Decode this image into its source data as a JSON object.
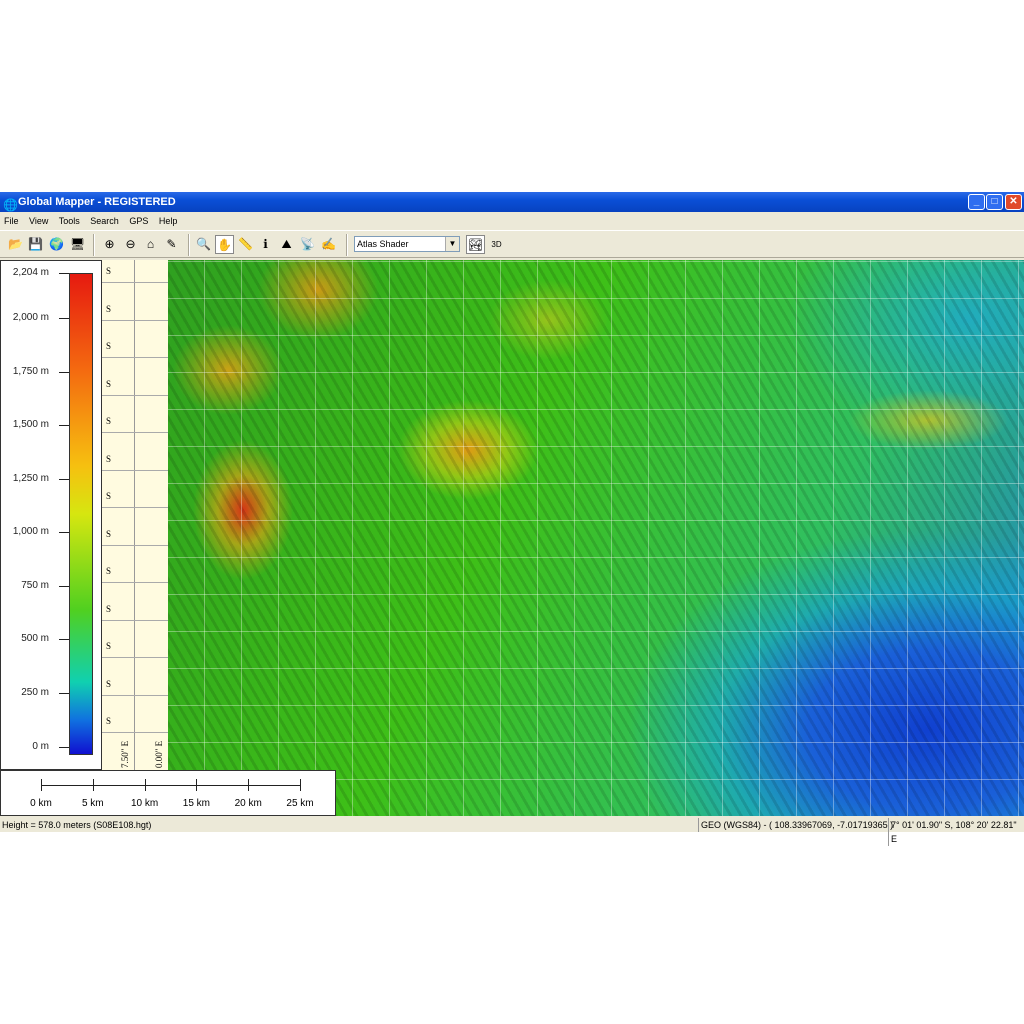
{
  "window": {
    "title": "Global Mapper - REGISTERED",
    "minimize": "_",
    "maximize": "□",
    "close": "✕"
  },
  "menu": [
    "File",
    "View",
    "Tools",
    "Search",
    "GPS",
    "Help"
  ],
  "toolbar": {
    "shader_value": "Atlas Shader",
    "view3d_label": "3D"
  },
  "legend": {
    "labels": [
      "2,204 m",
      "2,000 m",
      "1,750 m",
      "1,500 m",
      "1,250 m",
      "1,000 m",
      "750 m",
      "500 m",
      "250 m",
      "0 m"
    ],
    "min": 0,
    "max": 2204,
    "colors": [
      "#e61a10",
      "#f6c010",
      "#50d020",
      "#10d0b0",
      "#1010d0"
    ]
  },
  "latitude_labels": [
    "S",
    "S",
    "S",
    "S",
    "S",
    "S",
    "S",
    "S",
    "S",
    "S",
    "S",
    "S",
    "S"
  ],
  "longitude_strip_labels": [
    "7.50\" E",
    "0.00\" E"
  ],
  "scalebar": {
    "labels": [
      "0 km",
      "5 km",
      "10 km",
      "15 km",
      "20 km",
      "25 km"
    ]
  },
  "status": {
    "left": "Height = 578.0 meters (S08E108.hgt)",
    "projection": "GEO (WGS84) - ( 108.33967069, -7.01719365 )",
    "dms": "7° 01' 01.90\" S, 108° 20' 22.81\" E"
  }
}
